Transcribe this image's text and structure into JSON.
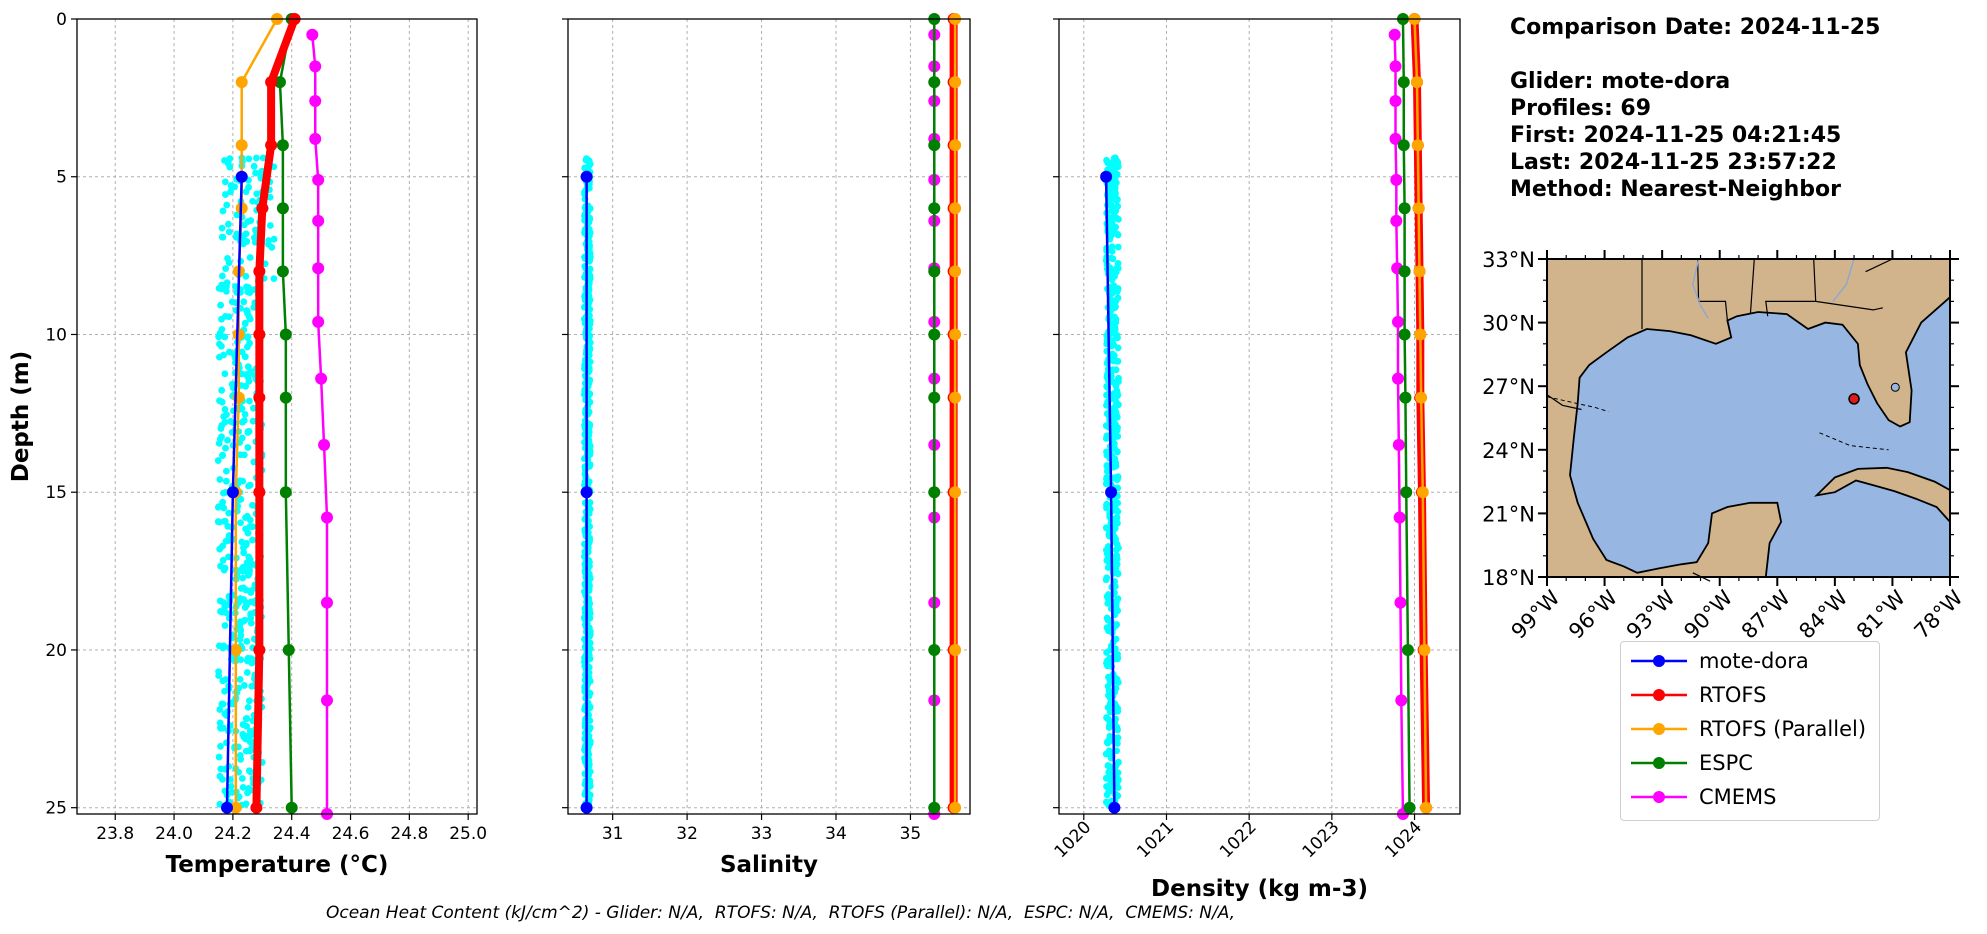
{
  "info": {
    "comparison_date": "Comparison Date: 2024-11-25",
    "glider": "Glider: mote-dora",
    "profiles": "Profiles: 69",
    "first": "First: 2024-11-25 04:21:45",
    "last": "Last: 2024-11-25 23:57:22",
    "method": "Method: Nearest-Neighbor"
  },
  "footer": "Ocean Heat Content (kJ/cm^2) - Glider: N/A,  RTOFS: N/A,  RTOFS (Parallel): N/A,  ESPC: N/A,  CMEMS: N/A,",
  "colors": {
    "glider": "#0000ff",
    "glider_raw": "#00ffff",
    "rtofs": "#ff0000",
    "rtofs_parallel": "#ffa500",
    "espc": "#008000",
    "cmems": "#ff00ff",
    "land": "#d2b48c",
    "ocean": "#97b6e1"
  },
  "legend": [
    {
      "label": "mote-dora",
      "color": "#0000ff"
    },
    {
      "label": "RTOFS",
      "color": "#ff0000"
    },
    {
      "label": "RTOFS (Parallel)",
      "color": "#ffa500"
    },
    {
      "label": "ESPC",
      "color": "#008000"
    },
    {
      "label": "CMEMS",
      "color": "#ff00ff"
    }
  ],
  "chart_data": [
    {
      "type": "line",
      "xlabel": "Temperature (°C)",
      "ylabel": "Depth (m)",
      "xlim": [
        23.67,
        25.03
      ],
      "ylim": [
        25.2,
        0
      ],
      "xticks": [
        "23.8",
        "24.0",
        "24.2",
        "24.4",
        "24.6",
        "24.8",
        "25.0"
      ],
      "xtick_values": [
        23.8,
        24.0,
        24.2,
        24.4,
        24.6,
        24.8,
        25.0
      ],
      "yticks": [
        "0",
        "5",
        "10",
        "15",
        "20",
        "25"
      ],
      "ytick_values": [
        0,
        5,
        10,
        15,
        20,
        25
      ],
      "grid": true,
      "raw_scatter": {
        "name": "mote-dora raw",
        "depth_range": [
          4.4,
          25
        ],
        "x_range": [
          24.15,
          24.3
        ]
      },
      "series": [
        {
          "name": "mote-dora",
          "depth": [
            5,
            15,
            25
          ],
          "values": [
            24.23,
            24.2,
            24.18
          ]
        },
        {
          "name": "RTOFS",
          "depth": [
            0,
            2,
            4,
            6,
            8,
            10,
            12,
            15,
            20,
            25
          ],
          "values": [
            24.41,
            24.33,
            24.33,
            24.3,
            24.29,
            24.29,
            24.29,
            24.29,
            24.29,
            24.28
          ]
        },
        {
          "name": "RTOFS (Parallel)",
          "depth": [
            0,
            2,
            4,
            6,
            8,
            10,
            12,
            15,
            20,
            25
          ],
          "values": [
            24.35,
            24.23,
            24.23,
            24.23,
            24.22,
            24.22,
            24.22,
            24.21,
            24.21,
            24.21
          ]
        },
        {
          "name": "ESPC",
          "depth": [
            0,
            2,
            4,
            6,
            8,
            10,
            12,
            15,
            20,
            25
          ],
          "values": [
            24.4,
            24.36,
            24.37,
            24.37,
            24.37,
            24.38,
            24.38,
            24.38,
            24.39,
            24.4
          ]
        },
        {
          "name": "CMEMS",
          "depth": [
            0.5,
            1.5,
            2.6,
            3.8,
            5.1,
            6.4,
            7.9,
            9.6,
            11.4,
            13.5,
            15.8,
            18.5,
            21.6,
            25.2
          ],
          "values": [
            24.47,
            24.48,
            24.48,
            24.48,
            24.49,
            24.49,
            24.49,
            24.49,
            24.5,
            24.51,
            24.52,
            24.52,
            24.52,
            24.52
          ]
        }
      ]
    },
    {
      "type": "line",
      "xlabel": "Salinity",
      "ylabel": "",
      "xlim": [
        30.4,
        35.8
      ],
      "ylim": [
        25.2,
        0
      ],
      "xticks": [
        "31",
        "32",
        "33",
        "34",
        "35"
      ],
      "xtick_values": [
        31,
        32,
        33,
        34,
        35
      ],
      "yticks": [
        "",
        "",
        "",
        "",
        "",
        ""
      ],
      "ytick_values": [
        0,
        5,
        10,
        15,
        20,
        25
      ],
      "grid": true,
      "raw_scatter": {
        "name": "mote-dora raw",
        "depth_range": [
          4.4,
          25
        ],
        "x_range": [
          30.62,
          30.7
        ]
      },
      "series": [
        {
          "name": "mote-dora",
          "depth": [
            5,
            15,
            25
          ],
          "values": [
            30.65,
            30.65,
            30.65
          ]
        },
        {
          "name": "RTOFS",
          "depth": [
            0,
            2,
            4,
            6,
            8,
            10,
            12,
            15,
            20,
            25
          ],
          "values": [
            35.58,
            35.58,
            35.58,
            35.58,
            35.58,
            35.58,
            35.58,
            35.58,
            35.58,
            35.58
          ]
        },
        {
          "name": "RTOFS (Parallel)",
          "depth": [
            0,
            2,
            4,
            6,
            8,
            10,
            12,
            15,
            20,
            25
          ],
          "values": [
            35.6,
            35.6,
            35.6,
            35.6,
            35.6,
            35.6,
            35.6,
            35.6,
            35.6,
            35.6
          ]
        },
        {
          "name": "ESPC",
          "depth": [
            0,
            2,
            4,
            6,
            8,
            10,
            12,
            15,
            20,
            25
          ],
          "values": [
            35.32,
            35.32,
            35.32,
            35.32,
            35.32,
            35.32,
            35.32,
            35.32,
            35.32,
            35.32
          ]
        },
        {
          "name": "CMEMS",
          "depth": [
            0.5,
            1.5,
            2.6,
            3.8,
            5.1,
            6.4,
            7.9,
            9.6,
            11.4,
            13.5,
            15.8,
            18.5,
            21.6,
            25.2
          ],
          "values": [
            35.32,
            35.32,
            35.32,
            35.32,
            35.32,
            35.32,
            35.32,
            35.32,
            35.32,
            35.32,
            35.32,
            35.32,
            35.32,
            35.32
          ]
        }
      ]
    },
    {
      "type": "line",
      "xlabel": "Density (kg m-3)",
      "ylabel": "",
      "xlim": [
        1019.7,
        1024.55
      ],
      "ylim": [
        25.2,
        0
      ],
      "xticks": [
        "1020",
        "1021",
        "1022",
        "1023",
        "1024"
      ],
      "xtick_values": [
        1020,
        1021,
        1022,
        1023,
        1024
      ],
      "yticks": [
        "",
        "",
        "",
        "",
        "",
        ""
      ],
      "ytick_values": [
        0,
        5,
        10,
        15,
        20,
        25
      ],
      "grid": true,
      "raw_scatter": {
        "name": "mote-dora raw",
        "depth_range": [
          4.4,
          25
        ],
        "x_range": [
          1020.27,
          1020.42
        ]
      },
      "series": [
        {
          "name": "mote-dora",
          "depth": [
            5,
            15,
            25
          ],
          "values": [
            1020.27,
            1020.33,
            1020.37
          ]
        },
        {
          "name": "RTOFS",
          "depth": [
            0,
            2,
            4,
            6,
            8,
            10,
            12,
            15,
            20,
            25
          ],
          "values": [
            1024.0,
            1024.03,
            1024.04,
            1024.05,
            1024.06,
            1024.07,
            1024.07,
            1024.09,
            1024.11,
            1024.14
          ]
        },
        {
          "name": "RTOFS (Parallel)",
          "depth": [
            0,
            2,
            4,
            6,
            8,
            10,
            12,
            15,
            20,
            25
          ],
          "values": [
            1024.0,
            1024.03,
            1024.04,
            1024.05,
            1024.06,
            1024.07,
            1024.08,
            1024.1,
            1024.12,
            1024.14
          ]
        },
        {
          "name": "ESPC",
          "depth": [
            0,
            2,
            4,
            6,
            8,
            10,
            12,
            15,
            20,
            25
          ],
          "values": [
            1023.86,
            1023.87,
            1023.87,
            1023.88,
            1023.88,
            1023.88,
            1023.89,
            1023.9,
            1023.92,
            1023.94
          ]
        },
        {
          "name": "CMEMS",
          "depth": [
            0.5,
            1.5,
            2.6,
            3.8,
            5.1,
            6.4,
            7.9,
            9.6,
            11.4,
            13.5,
            15.8,
            18.5,
            21.6,
            25.2
          ],
          "values": [
            1023.76,
            1023.77,
            1023.77,
            1023.77,
            1023.78,
            1023.78,
            1023.79,
            1023.8,
            1023.8,
            1023.81,
            1023.82,
            1023.83,
            1023.84,
            1023.86
          ]
        }
      ]
    }
  ],
  "map": {
    "lon_ticks": [
      "99°W",
      "96°W",
      "93°W",
      "90°W",
      "87°W",
      "84°W",
      "81°W",
      "78°W"
    ],
    "lon_values": [
      -99,
      -96,
      -93,
      -90,
      -87,
      -84,
      -81,
      -78
    ],
    "lat_ticks": [
      "33°N",
      "30°N",
      "27°N",
      "24°N",
      "21°N",
      "18°N"
    ],
    "lat_values": [
      33,
      30,
      27,
      24,
      21,
      18
    ],
    "lon_range": [
      -99,
      -78
    ],
    "lat_range": [
      18,
      33
    ],
    "glider_location": {
      "lon": -83.0,
      "lat": 26.4
    }
  }
}
